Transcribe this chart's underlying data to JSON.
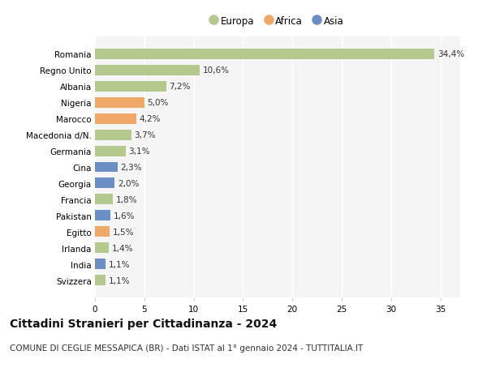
{
  "countries": [
    "Romania",
    "Regno Unito",
    "Albania",
    "Nigeria",
    "Marocco",
    "Macedonia d/N.",
    "Germania",
    "Cina",
    "Georgia",
    "Francia",
    "Pakistan",
    "Egitto",
    "Irlanda",
    "India",
    "Svizzera"
  ],
  "values": [
    34.4,
    10.6,
    7.2,
    5.0,
    4.2,
    3.7,
    3.1,
    2.3,
    2.0,
    1.8,
    1.6,
    1.5,
    1.4,
    1.1,
    1.1
  ],
  "labels": [
    "34,4%",
    "10,6%",
    "7,2%",
    "5,0%",
    "4,2%",
    "3,7%",
    "3,1%",
    "2,3%",
    "2,0%",
    "1,8%",
    "1,6%",
    "1,5%",
    "1,4%",
    "1,1%",
    "1,1%"
  ],
  "continents": [
    "Europa",
    "Europa",
    "Europa",
    "Africa",
    "Africa",
    "Europa",
    "Europa",
    "Asia",
    "Asia",
    "Europa",
    "Asia",
    "Africa",
    "Europa",
    "Asia",
    "Europa"
  ],
  "colors": {
    "Europa": "#b5c98e",
    "Africa": "#f0a868",
    "Asia": "#6b8ec4"
  },
  "legend_items": [
    "Europa",
    "Africa",
    "Asia"
  ],
  "title": "Cittadini Stranieri per Cittadinanza - 2024",
  "subtitle": "COMUNE DI CEGLIE MESSAPICA (BR) - Dati ISTAT al 1° gennaio 2024 - TUTTITALIA.IT",
  "xlim": [
    0,
    37
  ],
  "xticks": [
    0,
    5,
    10,
    15,
    20,
    25,
    30,
    35
  ],
  "background_color": "#ffffff",
  "plot_background": "#f5f5f5",
  "grid_color": "#ffffff",
  "title_fontsize": 10,
  "subtitle_fontsize": 7.5,
  "bar_label_fontsize": 7.5,
  "tick_fontsize": 7.5,
  "legend_fontsize": 8.5
}
